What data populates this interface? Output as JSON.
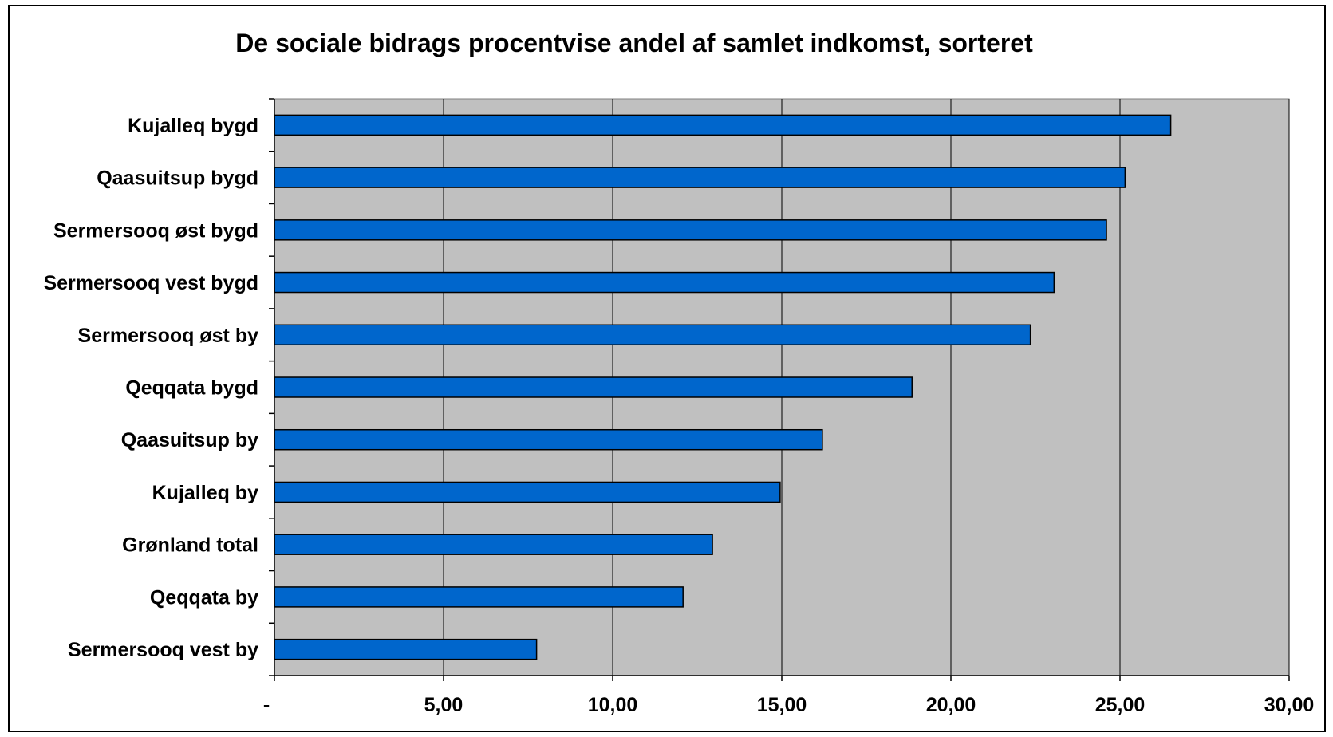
{
  "chart_data": {
    "type": "bar",
    "orientation": "horizontal",
    "title": "De sociale bidrags procentvise andel af samlet indkomst, sorteret",
    "xlabel": "",
    "ylabel": "",
    "categories": [
      "Kujalleq bygd",
      "Qaasuitsup bygd",
      "Sermersooq øst bygd",
      "Sermersooq vest bygd",
      "Sermersooq øst by",
      "Qeqqata bygd",
      "Qaasuitsup by",
      "Kujalleq by",
      "Grønland total",
      "Qeqqata by",
      "Sermersooq vest by"
    ],
    "values": [
      26.5,
      25.15,
      24.6,
      23.05,
      22.35,
      18.85,
      16.2,
      14.95,
      12.95,
      12.08,
      7.75
    ],
    "xlim": [
      0,
      30
    ],
    "xticks": [
      0,
      5,
      10,
      15,
      20,
      25,
      30
    ],
    "xtick_labels": [
      "-",
      "5,00",
      "10,00",
      "15,00",
      "20,00",
      "25,00",
      "30,00"
    ],
    "grid": true,
    "legend": "none",
    "colors": {
      "bar": "#0066CC",
      "bar_stroke": "#000000",
      "plot_background": "#C0C0C0",
      "gridline": "#000000"
    }
  }
}
